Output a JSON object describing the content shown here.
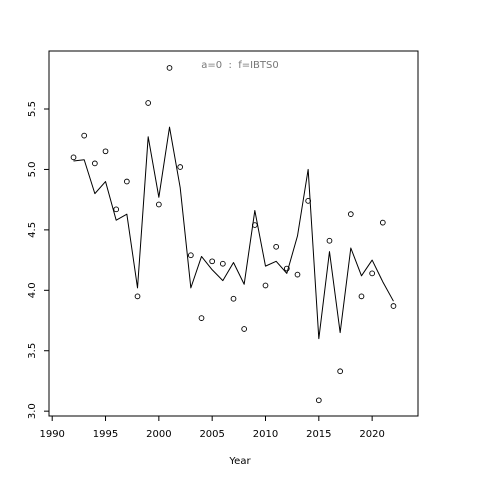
{
  "chart_data": {
    "type": "line",
    "title": "",
    "xlabel": "Year",
    "ylabel": "",
    "annotation": "a=0  :  f=IBTS0",
    "xlim": [
      1989.7,
      2024.3
    ],
    "ylim": [
      2.96,
      5.98
    ],
    "x_ticks": [
      1990,
      1995,
      2000,
      2005,
      2010,
      2015,
      2020
    ],
    "x_tick_labels": [
      "1990",
      "1995",
      "2000",
      "2005",
      "2010",
      "2015",
      "2020"
    ],
    "y_ticks": [
      3.0,
      3.5,
      4.0,
      4.5,
      5.0,
      5.5
    ],
    "y_tick_labels": [
      "3.0",
      "3.5",
      "4.0",
      "4.5",
      "5.0",
      "5.5"
    ],
    "grid": false,
    "legend": "none",
    "series": [
      {
        "kind": "line",
        "x": [
          1992,
          1993,
          1994,
          1995,
          1996,
          1997,
          1998,
          1999,
          2000,
          2001,
          2002,
          2003,
          2004,
          2005,
          2006,
          2007,
          2008,
          2009,
          2010,
          2011,
          2012,
          2013,
          2014,
          2015,
          2016,
          2017,
          2018,
          2019,
          2020,
          2021,
          2022
        ],
        "values": [
          5.07,
          5.08,
          4.8,
          4.9,
          4.58,
          4.63,
          4.02,
          5.27,
          4.77,
          5.35,
          4.85,
          4.02,
          4.28,
          4.17,
          4.08,
          4.23,
          4.05,
          4.66,
          4.2,
          4.24,
          4.14,
          4.45,
          5.0,
          3.6,
          4.32,
          3.65,
          4.35,
          4.12,
          4.25,
          4.07,
          3.91
        ]
      },
      {
        "kind": "points",
        "x": [
          1992,
          1993,
          1994,
          1995,
          1996,
          1997,
          1998,
          1999,
          2000,
          2001,
          2002,
          2003,
          2004,
          2005,
          2006,
          2007,
          2008,
          2009,
          2010,
          2011,
          2012,
          2013,
          2014,
          2015,
          2016,
          2017,
          2018,
          2019,
          2020,
          2021,
          2022
        ],
        "values": [
          5.1,
          5.28,
          5.05,
          5.15,
          4.67,
          4.9,
          3.95,
          5.55,
          4.71,
          5.84,
          5.02,
          4.29,
          3.77,
          4.24,
          4.22,
          3.93,
          3.68,
          4.54,
          4.04,
          4.36,
          4.18,
          4.13,
          4.74,
          3.09,
          4.41,
          3.33,
          4.63,
          3.95,
          4.14,
          4.56,
          3.87
        ]
      }
    ],
    "colors": {
      "axis": "#000000",
      "line": "#000000",
      "points": "#000000",
      "annotation": "#777777"
    }
  }
}
